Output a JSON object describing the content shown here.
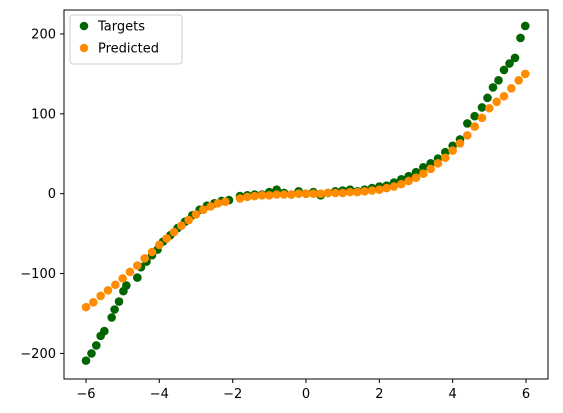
{
  "chart_data": {
    "type": "scatter",
    "title": "",
    "xlabel": "",
    "ylabel": "",
    "xlim": [
      -6.6,
      6.6
    ],
    "ylim": [
      -232,
      230
    ],
    "xticks": [
      -6,
      -4,
      -2,
      0,
      2,
      4,
      6
    ],
    "yticks": [
      -200,
      -100,
      0,
      100,
      200
    ],
    "grid": false,
    "legend": "upper-left",
    "series": [
      {
        "name": "Targets",
        "color": "#006400",
        "x": [
          -6.0,
          -5.85,
          -5.72,
          -5.6,
          -5.5,
          -5.3,
          -5.22,
          -5.1,
          -4.98,
          -4.9,
          -4.6,
          -4.5,
          -4.35,
          -4.2,
          -4.05,
          -3.9,
          -3.7,
          -3.5,
          -3.3,
          -3.1,
          -2.9,
          -2.7,
          -2.5,
          -2.3,
          -2.1,
          -1.8,
          -1.6,
          -1.4,
          -1.2,
          -1.0,
          -0.8,
          -0.6,
          -0.4,
          -0.2,
          0.0,
          0.2,
          0.4,
          0.6,
          0.8,
          1.0,
          1.2,
          1.4,
          1.6,
          1.8,
          2.0,
          2.2,
          2.4,
          2.6,
          2.8,
          3.0,
          3.2,
          3.4,
          3.6,
          3.8,
          4.0,
          4.2,
          4.4,
          4.6,
          4.8,
          4.95,
          5.1,
          5.25,
          5.4,
          5.55,
          5.7,
          5.85,
          5.98
        ],
        "y": [
          -209,
          -200,
          -190,
          -178,
          -172,
          -155,
          -145,
          -135,
          -122,
          -115,
          -105,
          -92,
          -85,
          -77,
          -70,
          -60,
          -52,
          -43,
          -35,
          -27,
          -20,
          -15,
          -12,
          -9,
          -8,
          -3,
          -2,
          -1,
          -1,
          2,
          5,
          1,
          -1,
          3,
          0,
          2,
          -2,
          1,
          3,
          4,
          5,
          3,
          5,
          7,
          9,
          10,
          14,
          18,
          22,
          27,
          33,
          38,
          44,
          52,
          60,
          68,
          88,
          97,
          108,
          120,
          133,
          142,
          155,
          163,
          170,
          195,
          210
        ]
      },
      {
        "name": "Predicted",
        "color": "#ff8c00",
        "x": [
          -6.0,
          -5.8,
          -5.6,
          -5.4,
          -5.2,
          -5.0,
          -4.8,
          -4.6,
          -4.4,
          -4.2,
          -4.0,
          -3.8,
          -3.6,
          -3.4,
          -3.2,
          -3.0,
          -2.8,
          -2.6,
          -2.4,
          -2.2,
          -1.8,
          -1.6,
          -1.4,
          -1.2,
          -1.0,
          -0.8,
          -0.6,
          -0.4,
          -0.2,
          0.0,
          0.2,
          0.4,
          0.6,
          0.8,
          1.0,
          1.2,
          1.4,
          1.6,
          1.8,
          2.0,
          2.2,
          2.4,
          2.6,
          2.8,
          3.0,
          3.2,
          3.4,
          3.6,
          3.8,
          4.0,
          4.2,
          4.4,
          4.6,
          4.8,
          5.0,
          5.2,
          5.4,
          5.6,
          5.8,
          5.98
        ],
        "y": [
          -142,
          -136,
          -128,
          -121,
          -114,
          -106,
          -98,
          -90,
          -81,
          -73,
          -64,
          -56,
          -48,
          -40,
          -33,
          -26,
          -20,
          -16,
          -12,
          -10,
          -6,
          -4,
          -3,
          -2,
          -2,
          -1,
          -1,
          -1,
          0,
          0,
          0,
          0,
          1,
          1,
          1,
          2,
          2,
          3,
          4,
          5,
          7,
          9,
          12,
          16,
          20,
          25,
          31,
          38,
          45,
          54,
          63,
          73,
          84,
          95,
          107,
          115,
          122,
          132,
          142,
          150
        ]
      }
    ]
  }
}
